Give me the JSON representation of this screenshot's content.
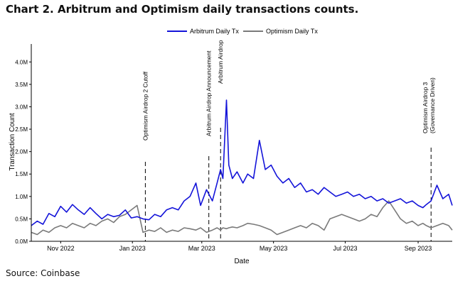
{
  "title": "Chart 2. Arbitrum and Optimism daily transactions counts.",
  "source": "Source: Coinbase",
  "chart_data": {
    "type": "line",
    "xlabel": "Date",
    "ylabel": "Transaction Count",
    "x_range": [
      "2022-10-07",
      "2023-09-30"
    ],
    "ylim": [
      0,
      4.4
    ],
    "y_unit": "M",
    "y_ticks": [
      0,
      0.5,
      1.0,
      1.5,
      2.0,
      2.5,
      3.0,
      3.5,
      4.0
    ],
    "y_tick_labels": [
      "0.0M",
      "0.5M",
      "1.0M",
      "1.5M",
      "2.0M",
      "2.5M",
      "3.0M",
      "3.5M",
      "4.0M"
    ],
    "x_ticks": [
      "2022-11-01",
      "2023-01-01",
      "2023-03-01",
      "2023-05-01",
      "2023-07-01",
      "2023-09-01"
    ],
    "x_tick_labels": [
      "Nov 2022",
      "Jan 2023",
      "Mar 2023",
      "May 2023",
      "Jul 2023",
      "Sep 2023"
    ],
    "grid": false,
    "legend_position": "top-center",
    "series": [
      {
        "name": "Arbitrum Daily Tx",
        "color": "#1414d9",
        "x": [
          "2022-10-07",
          "2022-10-12",
          "2022-10-17",
          "2022-10-22",
          "2022-10-27",
          "2022-11-01",
          "2022-11-06",
          "2022-11-11",
          "2022-11-16",
          "2022-11-21",
          "2022-11-26",
          "2022-12-01",
          "2022-12-06",
          "2022-12-11",
          "2022-12-16",
          "2022-12-21",
          "2022-12-26",
          "2022-12-31",
          "2023-01-05",
          "2023-01-10",
          "2023-01-15",
          "2023-01-20",
          "2023-01-25",
          "2023-01-30",
          "2023-02-04",
          "2023-02-09",
          "2023-02-14",
          "2023-02-19",
          "2023-02-24",
          "2023-02-28",
          "2023-03-05",
          "2023-03-10",
          "2023-03-14",
          "2023-03-17",
          "2023-03-19",
          "2023-03-22",
          "2023-03-24",
          "2023-03-27",
          "2023-03-31",
          "2023-04-05",
          "2023-04-09",
          "2023-04-14",
          "2023-04-19",
          "2023-04-24",
          "2023-04-29",
          "2023-05-04",
          "2023-05-09",
          "2023-05-14",
          "2023-05-19",
          "2023-05-24",
          "2023-05-29",
          "2023-06-03",
          "2023-06-08",
          "2023-06-13",
          "2023-06-18",
          "2023-06-23",
          "2023-06-28",
          "2023-07-03",
          "2023-07-08",
          "2023-07-13",
          "2023-07-18",
          "2023-07-23",
          "2023-07-28",
          "2023-08-02",
          "2023-08-07",
          "2023-08-12",
          "2023-08-17",
          "2023-08-22",
          "2023-08-27",
          "2023-09-01",
          "2023-09-05",
          "2023-09-08",
          "2023-09-12",
          "2023-09-17",
          "2023-09-22",
          "2023-09-27",
          "2023-09-30"
        ],
        "y": [
          0.35,
          0.45,
          0.38,
          0.62,
          0.55,
          0.78,
          0.65,
          0.82,
          0.7,
          0.6,
          0.75,
          0.62,
          0.5,
          0.6,
          0.55,
          0.58,
          0.7,
          0.52,
          0.55,
          0.5,
          0.48,
          0.6,
          0.55,
          0.7,
          0.75,
          0.7,
          0.9,
          1.0,
          1.3,
          0.8,
          1.15,
          0.9,
          1.3,
          1.6,
          1.4,
          3.15,
          1.7,
          1.4,
          1.55,
          1.3,
          1.5,
          1.4,
          2.25,
          1.6,
          1.7,
          1.45,
          1.3,
          1.4,
          1.2,
          1.3,
          1.1,
          1.15,
          1.05,
          1.2,
          1.1,
          1.0,
          1.05,
          1.1,
          1.0,
          1.05,
          0.95,
          1.0,
          0.9,
          0.95,
          0.85,
          0.9,
          0.95,
          0.85,
          0.9,
          0.8,
          0.75,
          0.82,
          0.9,
          1.25,
          0.95,
          1.05,
          0.8
        ]
      },
      {
        "name": "Optimism Daily Tx",
        "color": "#7a7a7a",
        "x": [
          "2022-10-07",
          "2022-10-12",
          "2022-10-17",
          "2022-10-22",
          "2022-10-27",
          "2022-11-01",
          "2022-11-06",
          "2022-11-11",
          "2022-11-16",
          "2022-11-21",
          "2022-11-26",
          "2022-12-01",
          "2022-12-06",
          "2022-12-11",
          "2022-12-16",
          "2022-12-21",
          "2022-12-26",
          "2022-12-31",
          "2023-01-05",
          "2023-01-10",
          "2023-01-15",
          "2023-01-20",
          "2023-01-25",
          "2023-01-30",
          "2023-02-04",
          "2023-02-09",
          "2023-02-14",
          "2023-02-19",
          "2023-02-24",
          "2023-02-28",
          "2023-03-05",
          "2023-03-10",
          "2023-03-14",
          "2023-03-17",
          "2023-03-19",
          "2023-03-22",
          "2023-03-24",
          "2023-03-27",
          "2023-03-31",
          "2023-04-05",
          "2023-04-09",
          "2023-04-14",
          "2023-04-19",
          "2023-04-24",
          "2023-04-29",
          "2023-05-04",
          "2023-05-09",
          "2023-05-14",
          "2023-05-19",
          "2023-05-24",
          "2023-05-29",
          "2023-06-03",
          "2023-06-08",
          "2023-06-13",
          "2023-06-18",
          "2023-06-23",
          "2023-06-28",
          "2023-07-03",
          "2023-07-08",
          "2023-07-13",
          "2023-07-18",
          "2023-07-23",
          "2023-07-28",
          "2023-08-02",
          "2023-08-07",
          "2023-08-12",
          "2023-08-17",
          "2023-08-22",
          "2023-08-27",
          "2023-09-01",
          "2023-09-05",
          "2023-09-08",
          "2023-09-12",
          "2023-09-17",
          "2023-09-22",
          "2023-09-27",
          "2023-09-30"
        ],
        "y": [
          0.2,
          0.15,
          0.25,
          0.2,
          0.3,
          0.35,
          0.3,
          0.4,
          0.35,
          0.3,
          0.4,
          0.35,
          0.45,
          0.5,
          0.42,
          0.55,
          0.6,
          0.7,
          0.8,
          0.2,
          0.25,
          0.22,
          0.3,
          0.2,
          0.25,
          0.22,
          0.3,
          0.28,
          0.25,
          0.3,
          0.2,
          0.25,
          0.3,
          0.25,
          0.3,
          0.28,
          0.3,
          0.32,
          0.3,
          0.35,
          0.4,
          0.38,
          0.35,
          0.3,
          0.25,
          0.15,
          0.2,
          0.25,
          0.3,
          0.35,
          0.3,
          0.4,
          0.35,
          0.25,
          0.5,
          0.55,
          0.6,
          0.55,
          0.5,
          0.45,
          0.5,
          0.6,
          0.55,
          0.75,
          0.9,
          0.7,
          0.5,
          0.4,
          0.45,
          0.35,
          0.4,
          0.35,
          0.3,
          0.35,
          0.4,
          0.35,
          0.25
        ]
      }
    ],
    "annotations": [
      {
        "date": "2023-01-12",
        "text": "Optimism Airdrop 2 Cutoff"
      },
      {
        "date": "2023-03-07",
        "text": "Arbitrum Airdrop Announcement"
      },
      {
        "date": "2023-03-17",
        "text": "Arbitrum Airdrop"
      },
      {
        "date": "2023-09-12",
        "text": "Optimism Airdrop 3 (Governance Driven)"
      }
    ]
  }
}
